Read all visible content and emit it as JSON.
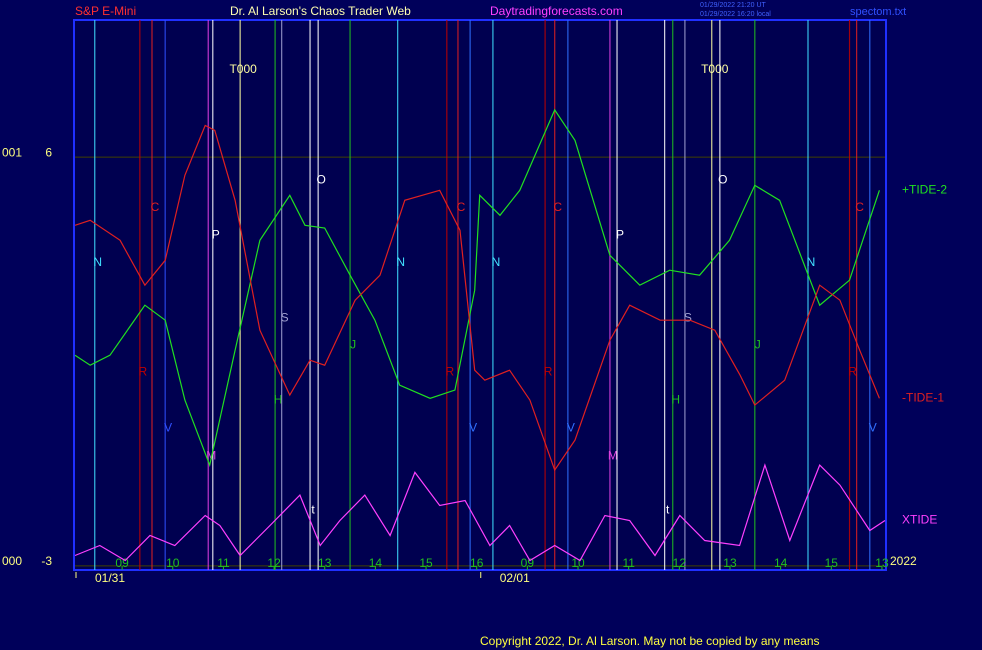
{
  "header": {
    "instrument": "S&P E-Mini",
    "site_title": "Dr. Al Larson's Chaos Trader Web",
    "url": "Daytradingforecasts.com",
    "stamp_ut": "01/29/2022 21:20 UT",
    "stamp_local": "01/29/2022 16:20 local",
    "file": "spectom.txt"
  },
  "footer": {
    "copyright": "Copyright 2022, Dr. Al Larson. May not be copied by any means"
  },
  "chart_data": {
    "type": "line",
    "xlim": [
      -0.93,
      15.06
    ],
    "ylim": [
      -3.09,
      9.02
    ],
    "xticks": [
      {
        "value": 0,
        "label": "09"
      },
      {
        "value": 1,
        "label": "10"
      },
      {
        "value": 2,
        "label": "11"
      },
      {
        "value": 3,
        "label": "12"
      },
      {
        "value": 4,
        "label": "13"
      },
      {
        "value": 5,
        "label": "14"
      },
      {
        "value": 6,
        "label": "15"
      },
      {
        "value": 7,
        "label": "16"
      },
      {
        "value": 8,
        "label": "09"
      },
      {
        "value": 9,
        "label": "10"
      },
      {
        "value": 10,
        "label": "11"
      },
      {
        "value": 11,
        "label": "12"
      },
      {
        "value": 12,
        "label": "13"
      },
      {
        "value": 13,
        "label": "14"
      },
      {
        "value": 14,
        "label": "15"
      },
      {
        "value": 15,
        "label": "13"
      }
    ],
    "date_ticks": [
      {
        "value": -0.93,
        "label": "01/31"
      },
      {
        "value": 7.06,
        "label": "02/01"
      }
    ],
    "year_label": "2022",
    "yticks": [
      -3,
      6
    ],
    "y_code_labels": [
      "000",
      "001"
    ],
    "grid": true,
    "series": [
      {
        "name": "+TIDE-2",
        "color": "#20e020",
        "x": [
          -0.93,
          -0.63,
          -0.24,
          0.45,
          0.85,
          1.24,
          1.73,
          2.23,
          2.72,
          3.31,
          3.61,
          4.0,
          4.5,
          4.99,
          5.48,
          6.08,
          6.57,
          6.96,
          7.06,
          7.46,
          7.85,
          8.54,
          8.94,
          9.63,
          10.22,
          10.81,
          11.4,
          11.99,
          12.49,
          12.98,
          13.77,
          14.36,
          14.95
        ],
        "values": [
          1.64,
          1.42,
          1.64,
          2.74,
          2.41,
          0.65,
          -0.78,
          1.75,
          4.17,
          5.16,
          4.5,
          4.44,
          3.4,
          2.41,
          0.98,
          0.69,
          0.87,
          3.07,
          5.16,
          4.72,
          5.27,
          7.04,
          6.37,
          3.84,
          3.18,
          3.51,
          3.4,
          4.17,
          5.38,
          5.05,
          2.74,
          3.29,
          5.27
        ]
      },
      {
        "name": "-TIDE-1",
        "color": "#e02020",
        "x": [
          -0.93,
          -0.63,
          -0.04,
          0.45,
          0.85,
          1.24,
          1.64,
          1.83,
          2.23,
          2.72,
          3.31,
          3.71,
          4.0,
          4.6,
          5.09,
          5.58,
          6.27,
          6.67,
          6.96,
          7.16,
          7.65,
          8.05,
          8.54,
          8.94,
          9.63,
          10.02,
          10.62,
          11.21,
          11.7,
          12.2,
          12.49,
          13.08,
          13.77,
          14.17,
          14.56,
          14.95
        ],
        "values": [
          4.5,
          4.61,
          4.17,
          3.18,
          3.73,
          5.6,
          6.7,
          6.59,
          5.05,
          2.19,
          0.76,
          1.53,
          1.42,
          2.85,
          3.4,
          5.05,
          5.27,
          4.39,
          1.31,
          1.09,
          1.31,
          0.65,
          -0.89,
          -0.23,
          1.97,
          2.74,
          2.41,
          2.41,
          2.19,
          1.2,
          0.54,
          1.09,
          3.18,
          2.85,
          1.75,
          0.69
        ]
      },
      {
        "name": "XTIDE",
        "color": "#ff40ff",
        "x": [
          -0.93,
          -0.44,
          0.06,
          0.55,
          1.04,
          1.64,
          1.93,
          2.33,
          2.92,
          3.51,
          3.91,
          4.3,
          4.79,
          5.29,
          5.78,
          6.27,
          6.77,
          7.26,
          7.65,
          8.05,
          8.54,
          9.04,
          9.53,
          10.02,
          10.52,
          11.01,
          11.5,
          12.19,
          12.69,
          13.18,
          13.77,
          14.17,
          14.76,
          15.06
        ],
        "values": [
          -2.77,
          -2.55,
          -2.88,
          -2.33,
          -2.55,
          -1.89,
          -2.11,
          -2.77,
          -2.11,
          -1.44,
          -2.55,
          -2.0,
          -1.44,
          -2.33,
          -0.94,
          -1.67,
          -1.56,
          -2.55,
          -2.11,
          -2.88,
          -2.55,
          -2.88,
          -1.89,
          -2.0,
          -2.77,
          -1.89,
          -2.44,
          -2.55,
          -0.78,
          -2.44,
          -0.78,
          -1.22,
          -2.22,
          -2.0
        ]
      }
    ],
    "markers": [
      {
        "x": -0.54,
        "label": "N",
        "y": 3.67,
        "color": "#40e0ff"
      },
      {
        "x": 0.35,
        "label": "R",
        "y": 1.26,
        "color": "#c00000"
      },
      {
        "x": 0.59,
        "label": "C",
        "y": 4.88,
        "color": "#e02020"
      },
      {
        "x": 0.85,
        "label": "V",
        "y": 0.03,
        "color": "#3050ff"
      },
      {
        "x": 1.7,
        "label": "M",
        "y": -0.59,
        "color": "#e040e0"
      },
      {
        "x": 1.79,
        "label": "P",
        "y": 4.28,
        "color": "#ffffff"
      },
      {
        "x": 2.33,
        "label": "T000",
        "y": 7.92,
        "color": "#ffffa0"
      },
      {
        "x": 3.02,
        "label": "H",
        "y": 0.65,
        "color": "#20c020"
      },
      {
        "x": 3.15,
        "label": "S",
        "y": 2.45,
        "color": "#a0a0d0"
      },
      {
        "x": 3.71,
        "label": "t",
        "y": -1.78,
        "color": "#ffffff"
      },
      {
        "x": 3.87,
        "label": "O",
        "y": 5.49,
        "color": "#ffffff"
      },
      {
        "x": 4.5,
        "label": "J",
        "y": 1.86,
        "color": "#20c020"
      },
      {
        "x": 5.44,
        "label": "N",
        "y": 3.67,
        "color": "#40e0ff"
      },
      {
        "x": 6.41,
        "label": "R",
        "y": 1.26,
        "color": "#c00000"
      },
      {
        "x": 6.63,
        "label": "C",
        "y": 4.88,
        "color": "#e02020"
      },
      {
        "x": 6.87,
        "label": "V",
        "y": 0.03,
        "color": "#3070ff"
      },
      {
        "x": 7.32,
        "label": "N",
        "y": 3.67,
        "color": "#40e0ff"
      },
      {
        "x": 8.35,
        "label": "R",
        "y": 1.26,
        "color": "#c00000"
      },
      {
        "x": 8.54,
        "label": "C",
        "y": 4.88,
        "color": "#e02020"
      },
      {
        "x": 8.8,
        "label": "V",
        "y": 0.03,
        "color": "#3070ff"
      },
      {
        "x": 9.63,
        "label": "M",
        "y": -0.59,
        "color": "#e040e0"
      },
      {
        "x": 9.77,
        "label": "P",
        "y": 4.28,
        "color": "#ffffff"
      },
      {
        "x": 10.71,
        "label": "t",
        "y": -1.78,
        "color": "#ffffff"
      },
      {
        "x": 10.87,
        "label": "H",
        "y": 0.65,
        "color": "#20c020"
      },
      {
        "x": 11.11,
        "label": "S",
        "y": 2.45,
        "color": "#a0a0d0"
      },
      {
        "x": 11.64,
        "label": "T000",
        "y": 7.92,
        "color": "#ffffa0"
      },
      {
        "x": 11.8,
        "label": "O",
        "y": 5.49,
        "color": "#ffffff"
      },
      {
        "x": 12.49,
        "label": "J",
        "y": 1.86,
        "color": "#20c020"
      },
      {
        "x": 13.54,
        "label": "N",
        "y": 3.67,
        "color": "#40e0ff"
      },
      {
        "x": 14.36,
        "label": "R",
        "y": 1.26,
        "color": "#c00000"
      },
      {
        "x": 14.5,
        "label": "C",
        "y": 4.88,
        "color": "#e02020"
      },
      {
        "x": 14.76,
        "label": "V",
        "y": 0.03,
        "color": "#3070ff"
      }
    ]
  }
}
